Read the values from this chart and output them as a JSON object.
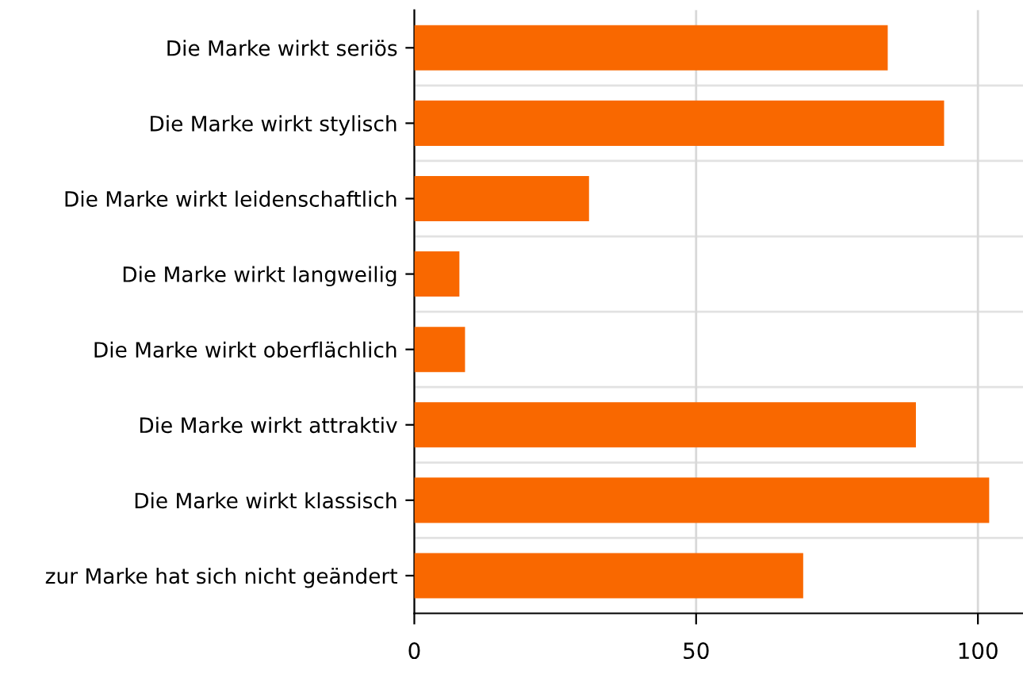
{
  "chart_data": {
    "type": "bar",
    "orientation": "horizontal",
    "categories": [
      "Die Marke wirkt seriös",
      "Die Marke wirkt stylisch",
      "Die Marke wirkt leidenschaftlich",
      "Die Marke wirkt langweilig",
      "Die Marke wirkt oberflächlich",
      "Die Marke wirkt attraktiv",
      "Die Marke wirkt klassisch",
      "zur Marke hat sich nicht geändert"
    ],
    "values": [
      84,
      94,
      31,
      8,
      9,
      89,
      102,
      69
    ],
    "color": "#f96800",
    "xlim": [
      0,
      108
    ],
    "xticks": [
      0,
      50,
      100
    ],
    "grid": true
  }
}
